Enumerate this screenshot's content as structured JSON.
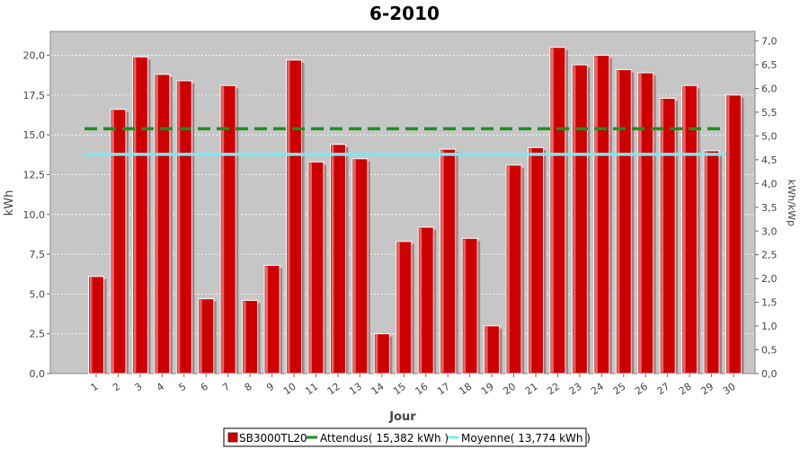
{
  "chart_data": {
    "type": "bar",
    "title": "6-2010",
    "xlabel": "Jour",
    "ylabel": "kWh",
    "y2label": "kWh/kWp",
    "categories": [
      "1",
      "2",
      "3",
      "4",
      "5",
      "6",
      "7",
      "8",
      "9",
      "10",
      "11",
      "12",
      "13",
      "14",
      "15",
      "16",
      "17",
      "18",
      "19",
      "20",
      "21",
      "22",
      "23",
      "24",
      "25",
      "26",
      "27",
      "28",
      "29",
      "30"
    ],
    "ylim": [
      0,
      21.5
    ],
    "y2lim": [
      0,
      7.2
    ],
    "yticks": [
      "0,0",
      "2,5",
      "5,0",
      "7,5",
      "10,0",
      "12,5",
      "15,0",
      "17,5",
      "20,0"
    ],
    "y2ticks": [
      "0,0",
      "0,5",
      "1,0",
      "1,5",
      "2,0",
      "2,5",
      "3,0",
      "3,5",
      "4,0",
      "4,5",
      "5,0",
      "5,5",
      "6,0",
      "6,5",
      "7,0"
    ],
    "series": [
      {
        "name": "SB3000TL20",
        "values": [
          6.1,
          16.6,
          19.9,
          18.8,
          18.4,
          4.7,
          18.1,
          4.6,
          6.8,
          19.7,
          13.3,
          14.4,
          13.5,
          2.5,
          8.3,
          9.2,
          14.1,
          8.5,
          3.0,
          13.1,
          14.2,
          20.5,
          19.4,
          20.0,
          19.1,
          18.9,
          17.3,
          18.1,
          14.0,
          17.5
        ],
        "color": "#cc0000"
      }
    ],
    "reference_lines": [
      {
        "name": "Attendus",
        "value": 15.382,
        "color": "#1f8f1f",
        "style": "dashed"
      },
      {
        "name": "Moyenne",
        "value": 13.774,
        "color": "#7ee8ee",
        "style": "solid"
      }
    ],
    "grid": true,
    "legend_position": "bottom",
    "legend": {
      "items": [
        "SB3000TL20",
        "Attendus( 15,382 kWh )",
        "Moyenne( 13,774 kWh )"
      ]
    }
  }
}
